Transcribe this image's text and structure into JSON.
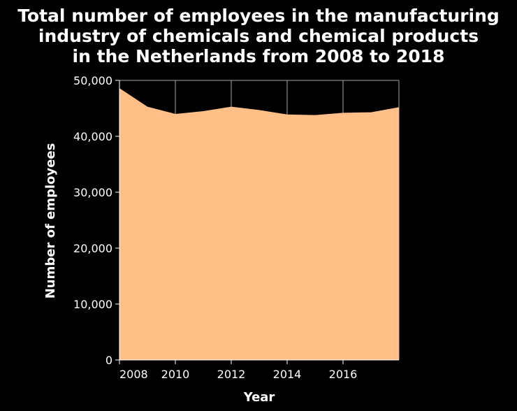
{
  "colors": {
    "background": "#000000",
    "area_fill": "#ffbf86",
    "text": "#ffffff",
    "grid": "#a6a6a6",
    "axis": "#ffffff"
  },
  "chart_data": {
    "type": "area",
    "title_lines": [
      "Total number of employees in the manufacturing",
      "industry of chemicals and chemical products",
      "in the Netherlands from 2008 to 2018"
    ],
    "xlabel": "Year",
    "ylabel": "Number of employees",
    "xlim": [
      2008,
      2018
    ],
    "ylim": [
      0,
      50000
    ],
    "x_ticks": [
      2008,
      2010,
      2012,
      2014,
      2016
    ],
    "x_tick_labels": [
      "2008",
      "2010",
      "2012",
      "2014",
      "2016"
    ],
    "y_ticks": [
      0,
      10000,
      20000,
      30000,
      40000,
      50000
    ],
    "y_tick_labels": [
      "0",
      "10,000",
      "20,000",
      "30,000",
      "40,000",
      "50,000"
    ],
    "grid": true,
    "series": [
      {
        "x": [
          2008,
          2009,
          2010,
          2011,
          2012,
          2013,
          2014,
          2015,
          2016,
          2017,
          2018
        ],
        "values": [
          48600,
          45300,
          44000,
          44500,
          45300,
          44700,
          43900,
          43800,
          44200,
          44300,
          45200
        ]
      }
    ]
  }
}
